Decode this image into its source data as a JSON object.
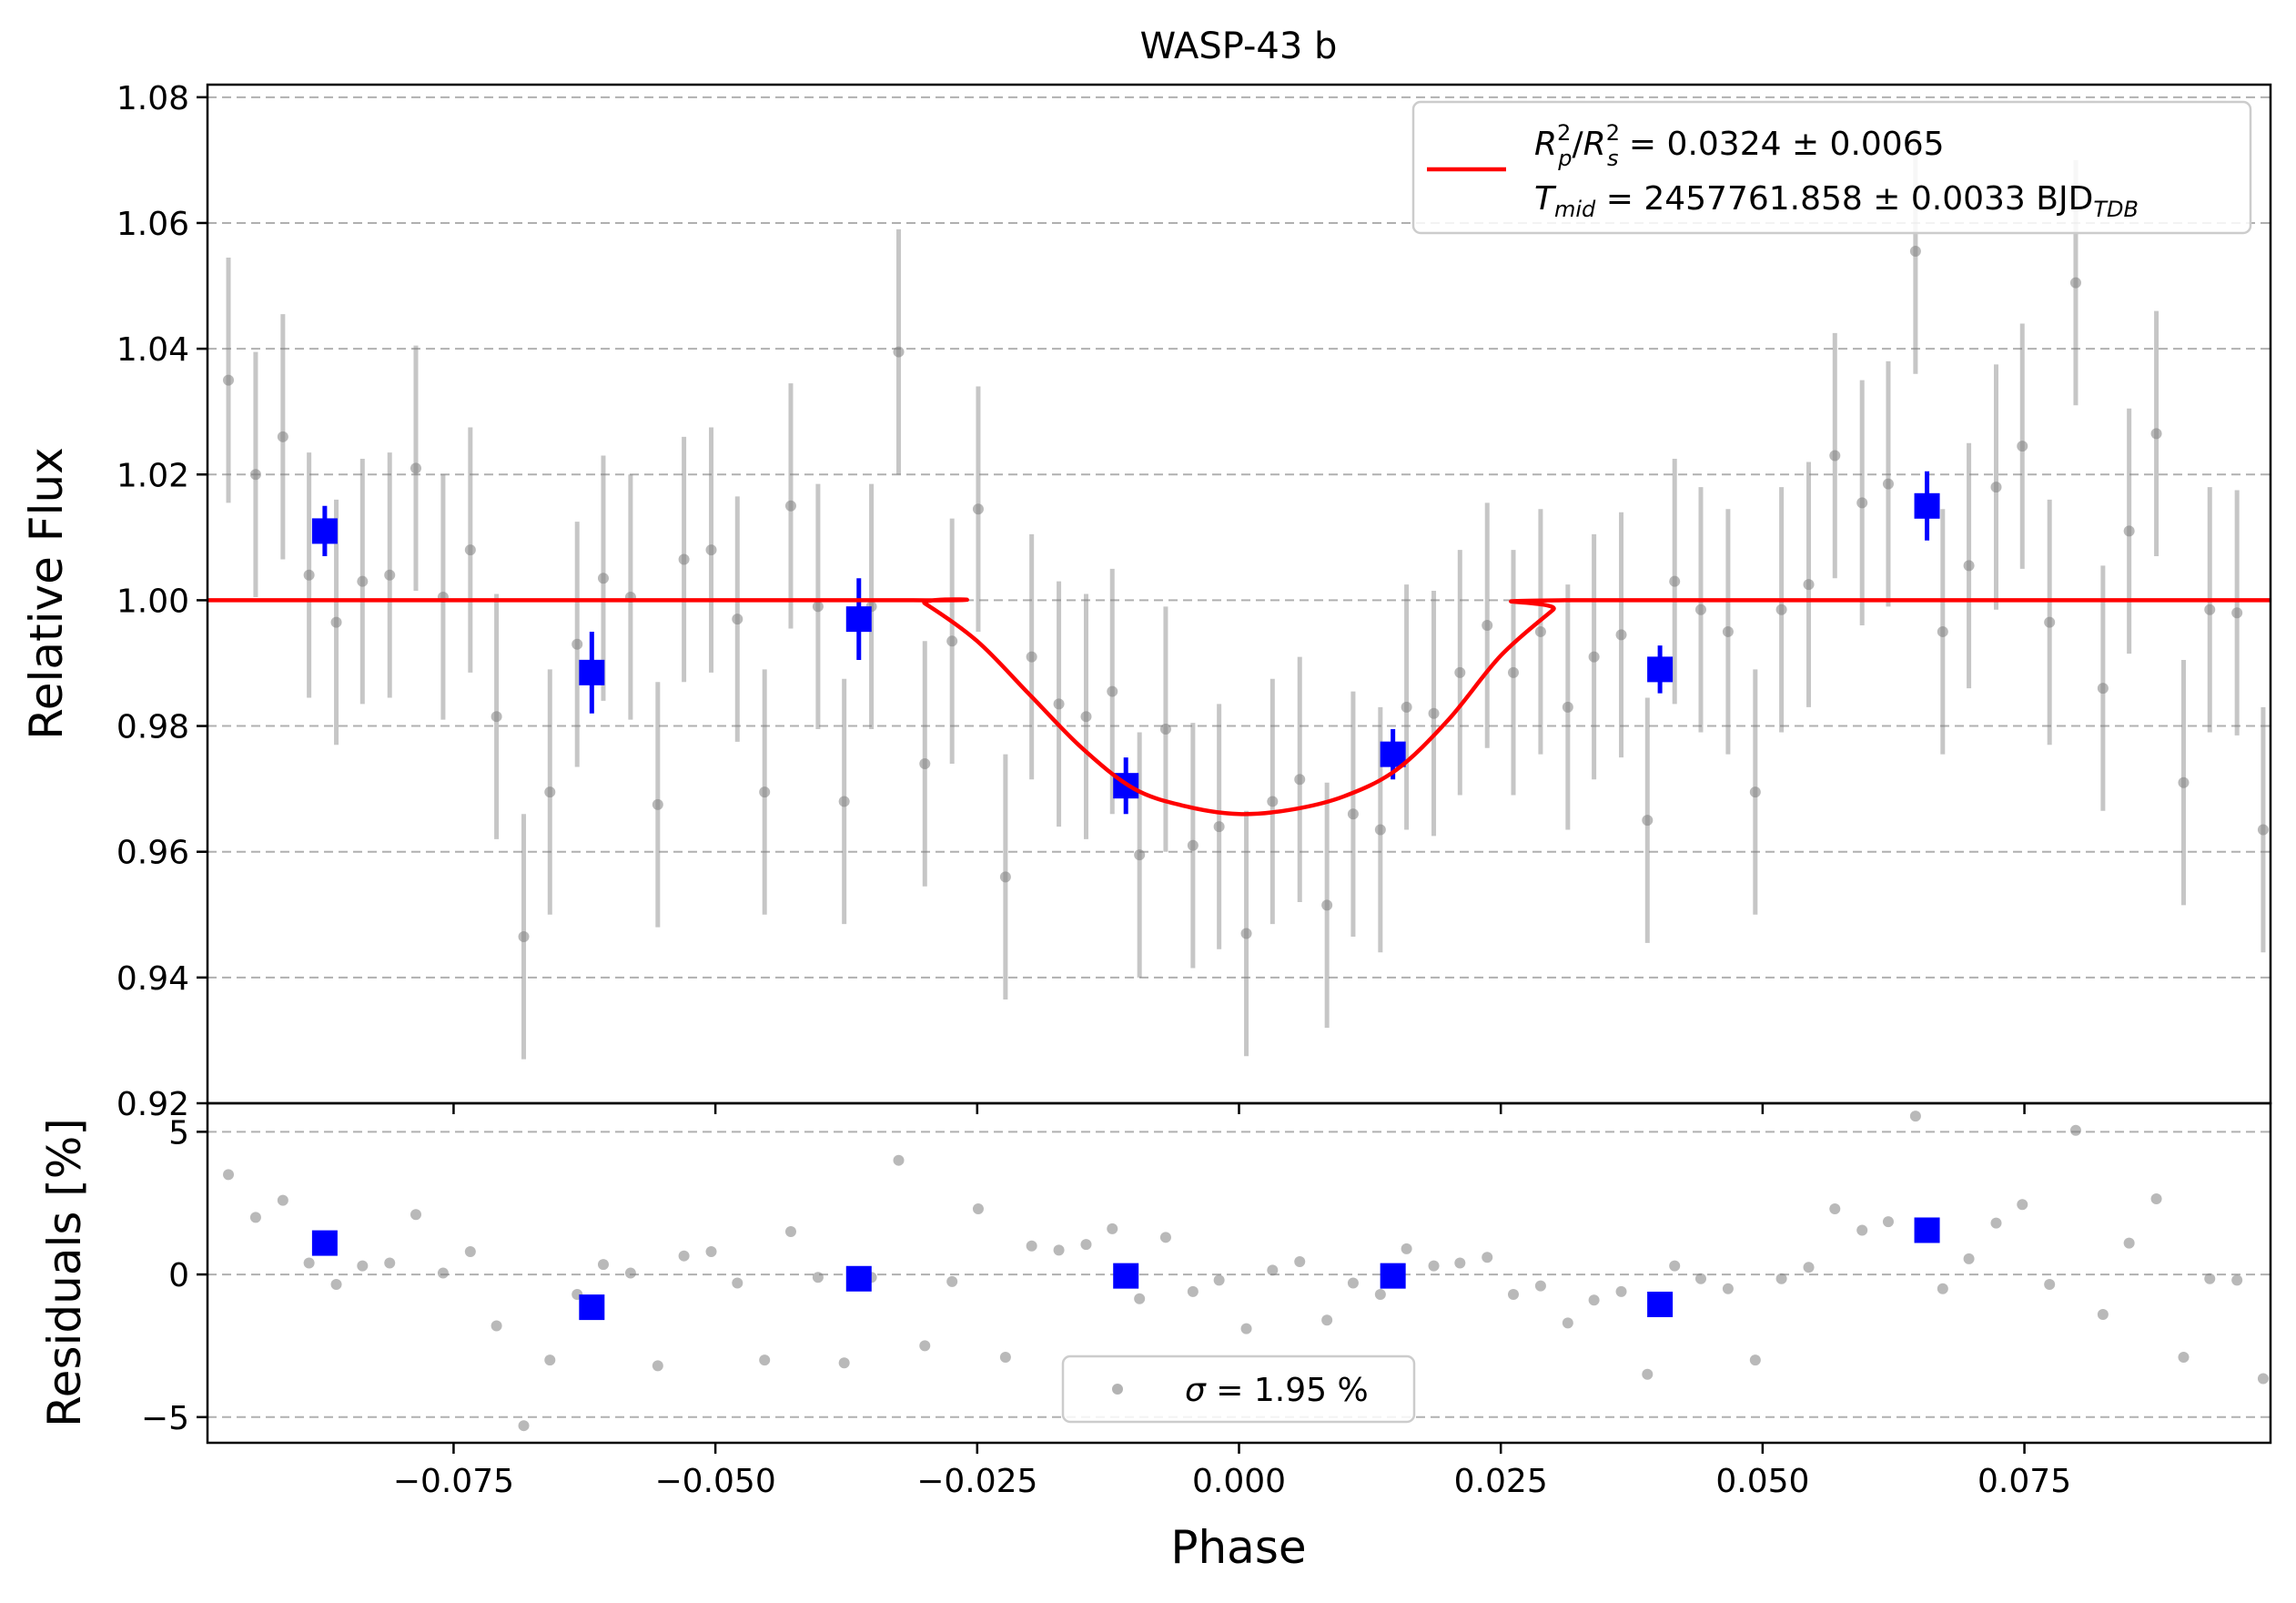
{
  "chart_data": [
    {
      "type": "scatter",
      "title": "WASP-43 b",
      "xlabel": "",
      "ylabel": "Relative Flux",
      "xlim": [
        -0.0985,
        0.0985
      ],
      "ylim": [
        0.92,
        1.082
      ],
      "yticks": [
        0.92,
        0.94,
        0.96,
        0.98,
        1.0,
        1.02,
        1.04,
        1.06,
        1.08
      ],
      "ytick_labels": [
        "0.92",
        "0.94",
        "0.96",
        "0.98",
        "1.00",
        "1.02",
        "1.04",
        "1.06",
        "1.08"
      ],
      "grid": "y-dashed",
      "legend_position": "top-right",
      "legend": [
        {
          "text": "R_p^2/R_s^2 = 0.0324 ± 0.0065",
          "base1": "R",
          "sub1": "p",
          "sup1": "2",
          "slash": "/",
          "base2": "R",
          "sub2": "s",
          "sup2": "2",
          "rest": " = 0.0324 ± 0.0065",
          "color": "#ff0000"
        },
        {
          "text": "T_mid = 2457761.858 ± 0.0033 BJD_TDB",
          "base": "T",
          "sub": "mid",
          "rest": " = 2457761.858 ± 0.0033 BJD",
          "rest_sub": "TDB",
          "color": "#ff0000"
        }
      ],
      "data_error": 0.0195,
      "data_color": "#808080",
      "binned_color": "#0000ff",
      "model_color": "#ff0000",
      "model": {
        "baseline": 1.0,
        "x": [
          -0.0985,
          -0.0311,
          -0.03,
          -0.025,
          -0.02,
          -0.015,
          -0.01,
          -0.005,
          0.0,
          0.005,
          0.01,
          0.015,
          0.02,
          0.025,
          0.03,
          0.0311,
          0.0985
        ],
        "y": [
          1.0,
          1.0,
          0.9995,
          0.9935,
          0.985,
          0.9765,
          0.97,
          0.9672,
          0.966,
          0.9667,
          0.9688,
          0.973,
          0.981,
          0.9912,
          0.9985,
          1.0,
          1.0
        ]
      },
      "data": {
        "x": [
          -0.0965,
          -0.0939,
          -0.0913,
          -0.0888,
          -0.0862,
          -0.0837,
          -0.0811,
          -0.0786,
          -0.076,
          -0.0734,
          -0.0709,
          -0.0683,
          -0.0658,
          -0.0632,
          -0.0607,
          -0.0581,
          -0.0555,
          -0.053,
          -0.0504,
          -0.0479,
          -0.0453,
          -0.0428,
          -0.0402,
          -0.0377,
          -0.0351,
          -0.0325,
          -0.03,
          -0.0274,
          -0.0249,
          -0.0223,
          -0.0198,
          -0.0172,
          -0.0146,
          -0.0121,
          -0.0095,
          -0.007,
          -0.0044,
          -0.0019,
          0.0007,
          0.0032,
          0.0058,
          0.0084,
          0.0109,
          0.0135,
          0.016,
          0.0186,
          0.0211,
          0.0237,
          0.0262,
          0.0288,
          0.0314,
          0.0339,
          0.0365,
          0.039,
          0.0416,
          0.0441,
          0.0467,
          0.0493,
          0.0518,
          0.0544,
          0.0569,
          0.0595,
          0.062,
          0.0646,
          0.0672,
          0.0697,
          0.0723,
          0.0748,
          0.0774,
          0.0799,
          0.0825,
          0.085,
          0.0876,
          0.0902,
          0.0927,
          0.0953,
          0.0978
        ],
        "y": [
          1.035,
          1.02,
          1.026,
          1.004,
          0.9965,
          1.003,
          1.004,
          1.021,
          1.0005,
          1.008,
          0.9815,
          0.9465,
          0.9695,
          0.993,
          1.0035,
          1.0005,
          0.9675,
          1.0065,
          1.008,
          0.997,
          0.9695,
          1.015,
          0.999,
          0.968,
          0.999,
          1.0395,
          0.974,
          0.9935,
          1.0145,
          0.956,
          0.991,
          0.9835,
          0.9815,
          0.9855,
          0.9595,
          0.9795,
          0.961,
          0.964,
          0.947,
          0.968,
          0.9715,
          0.9515,
          0.966,
          0.9635,
          0.983,
          0.982,
          0.9885,
          0.996,
          0.9885,
          0.995,
          0.983,
          0.991,
          0.9945,
          0.965,
          1.003,
          0.9985,
          0.995,
          0.9695,
          0.9985,
          1.0025,
          1.023,
          1.0155,
          1.0185,
          1.0555,
          0.995,
          1.0055,
          1.018,
          1.0245,
          0.9965,
          1.0505,
          0.986,
          1.011,
          1.0265,
          0.971,
          0.9985,
          0.998,
          0.9635
        ]
      },
      "binned": {
        "x": [
          -0.0873,
          -0.0618,
          -0.0363,
          -0.0108,
          0.0147,
          0.0402,
          0.0657
        ],
        "y": [
          1.011,
          0.9885,
          0.997,
          0.9705,
          0.9755,
          0.989,
          1.015
        ],
        "err": [
          0.004,
          0.0065,
          0.0065,
          0.0045,
          0.004,
          0.0038,
          0.0055
        ]
      }
    },
    {
      "type": "scatter",
      "title": "",
      "xlabel": "Phase",
      "ylabel": "Residuals [%]",
      "xlim": [
        -0.0985,
        0.0985
      ],
      "ylim": [
        -5.9,
        6.0
      ],
      "xticks": [
        -0.075,
        -0.05,
        -0.025,
        0.0,
        0.025,
        0.05,
        0.075
      ],
      "xtick_labels": [
        "−0.075",
        "−0.050",
        "−0.025",
        "0.000",
        "0.025",
        "0.050",
        "0.075"
      ],
      "yticks": [
        -5,
        0,
        5
      ],
      "ytick_labels": [
        "−5",
        "0",
        "5"
      ],
      "grid": "y-dashed",
      "legend_position": "bottom-center",
      "legend": [
        {
          "text": "σ = 1.95 %",
          "symbol": "σ",
          "rest": " = 1.95 %",
          "color": "#808080"
        }
      ],
      "residuals": {
        "x": [
          -0.099,
          -0.0965,
          -0.0939,
          -0.0913,
          -0.0888,
          -0.0862,
          -0.0837,
          -0.0811,
          -0.0786,
          -0.076,
          -0.0734,
          -0.0709,
          -0.0683,
          -0.0658,
          -0.0632,
          -0.0607,
          -0.0581,
          -0.0555,
          -0.053,
          -0.0504,
          -0.0479,
          -0.0453,
          -0.0428,
          -0.0402,
          -0.0377,
          -0.0351,
          -0.0325,
          -0.03,
          -0.0274,
          -0.0249,
          -0.0223,
          -0.0198,
          -0.0172,
          -0.0146,
          -0.0121,
          -0.0095,
          -0.007,
          -0.0044,
          -0.0019,
          0.0007,
          0.0032,
          0.0058,
          0.0084,
          0.0109,
          0.0135,
          0.016,
          0.0186,
          0.0211,
          0.0237,
          0.0262,
          0.0288,
          0.0314,
          0.0339,
          0.0365,
          0.039,
          0.0416,
          0.0441,
          0.0467,
          0.0493,
          0.0518,
          0.0544,
          0.0569,
          0.0595,
          0.062,
          0.0646,
          0.0672,
          0.0697,
          0.0723,
          0.0748,
          0.0774,
          0.0799,
          0.0825,
          0.085,
          0.0876,
          0.0902,
          0.0927,
          0.0953,
          0.0978
        ],
        "y": [
          0.0,
          3.5,
          2.0,
          2.6,
          0.4,
          -0.35,
          0.3,
          0.4,
          2.1,
          0.05,
          0.8,
          -1.8,
          -5.3,
          -3.0,
          -0.7,
          0.35,
          0.05,
          -3.2,
          0.65,
          0.8,
          -0.3,
          -3.0,
          1.5,
          -0.1,
          -3.1,
          -0.1,
          4.0,
          -2.5,
          -0.25,
          2.3,
          -2.9,
          1.0,
          0.85,
          1.05,
          1.6,
          -0.85,
          1.3,
          -0.6,
          -0.2,
          -1.9,
          0.15,
          0.45,
          -1.6,
          -0.3,
          -0.7,
          0.9,
          0.3,
          0.4,
          0.6,
          -0.7,
          -0.4,
          -1.7,
          -0.9,
          -0.6,
          -3.5,
          0.3,
          -0.15,
          -0.5,
          -3.0,
          -0.15,
          0.25,
          2.3,
          1.55,
          1.85,
          5.55,
          -0.5,
          0.55,
          1.8,
          2.45,
          -0.35,
          5.05,
          -1.4,
          1.1,
          2.65,
          -2.9,
          -0.15,
          -0.2,
          -3.65
        ]
      },
      "binned": {
        "x": [
          -0.0873,
          -0.0618,
          -0.0363,
          -0.0108,
          0.0147,
          0.0402,
          0.0657
        ],
        "y": [
          1.1,
          -1.15,
          -0.15,
          -0.05,
          -0.05,
          -1.05,
          1.55
        ]
      }
    }
  ]
}
